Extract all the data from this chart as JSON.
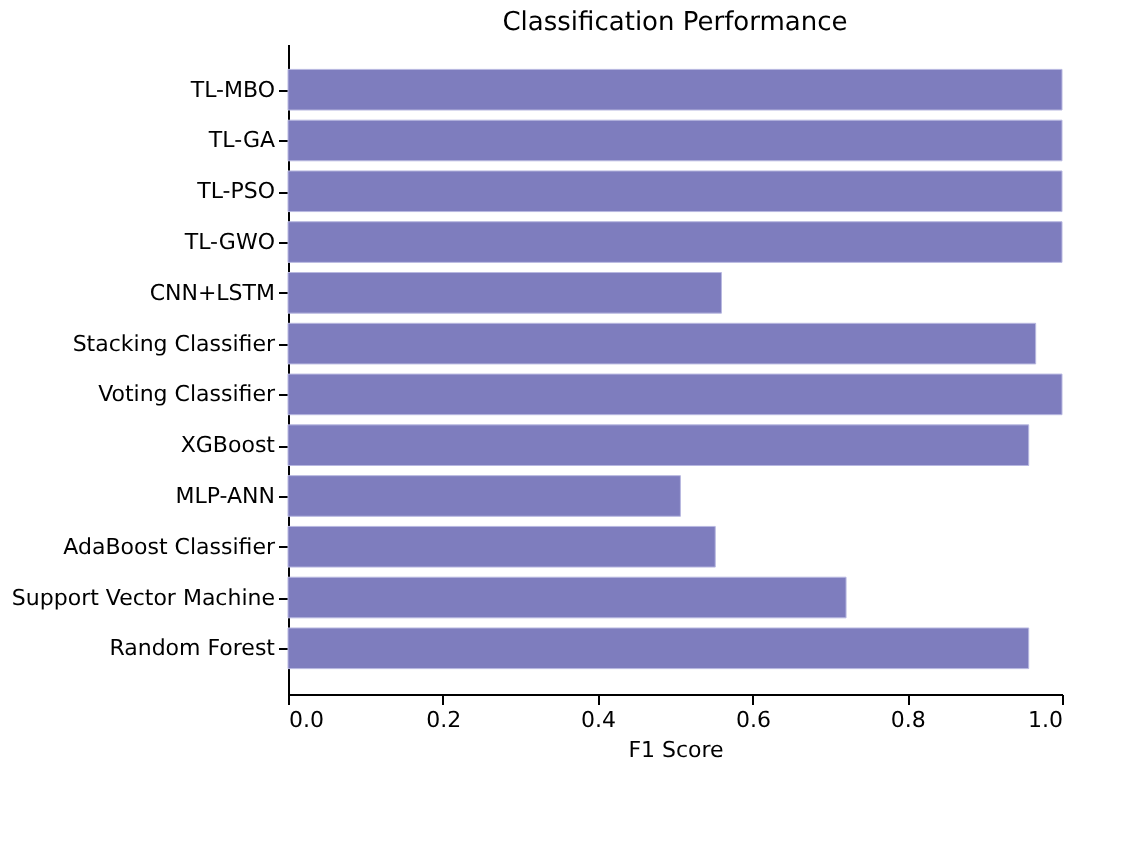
{
  "chart_data": {
    "type": "bar",
    "orientation": "horizontal",
    "title": "Classification Performance",
    "xlabel": "F1 Score",
    "categories": [
      "TL-MBO",
      "TL-GA",
      "TL-PSO",
      "TL-GWO",
      "CNN+LSTM",
      "Stacking Classifier",
      "Voting Classifier",
      "XGBoost",
      "MLP-ANN",
      "AdaBoost Classifier",
      "Support Vector Machine",
      "Random Forest"
    ],
    "values": [
      1.0,
      1.0,
      1.0,
      1.0,
      0.56,
      0.966,
      1.0,
      0.957,
      0.507,
      0.552,
      0.721,
      0.957
    ],
    "color": "#7e7dbe",
    "xlim": [
      0,
      1.0
    ],
    "xticks": [
      {
        "value": 0,
        "label": "0.0"
      },
      0.2,
      0.4,
      0.6,
      0.8,
      {
        "value": 1,
        "label": "1.0"
      }
    ],
    "grid": false
  }
}
